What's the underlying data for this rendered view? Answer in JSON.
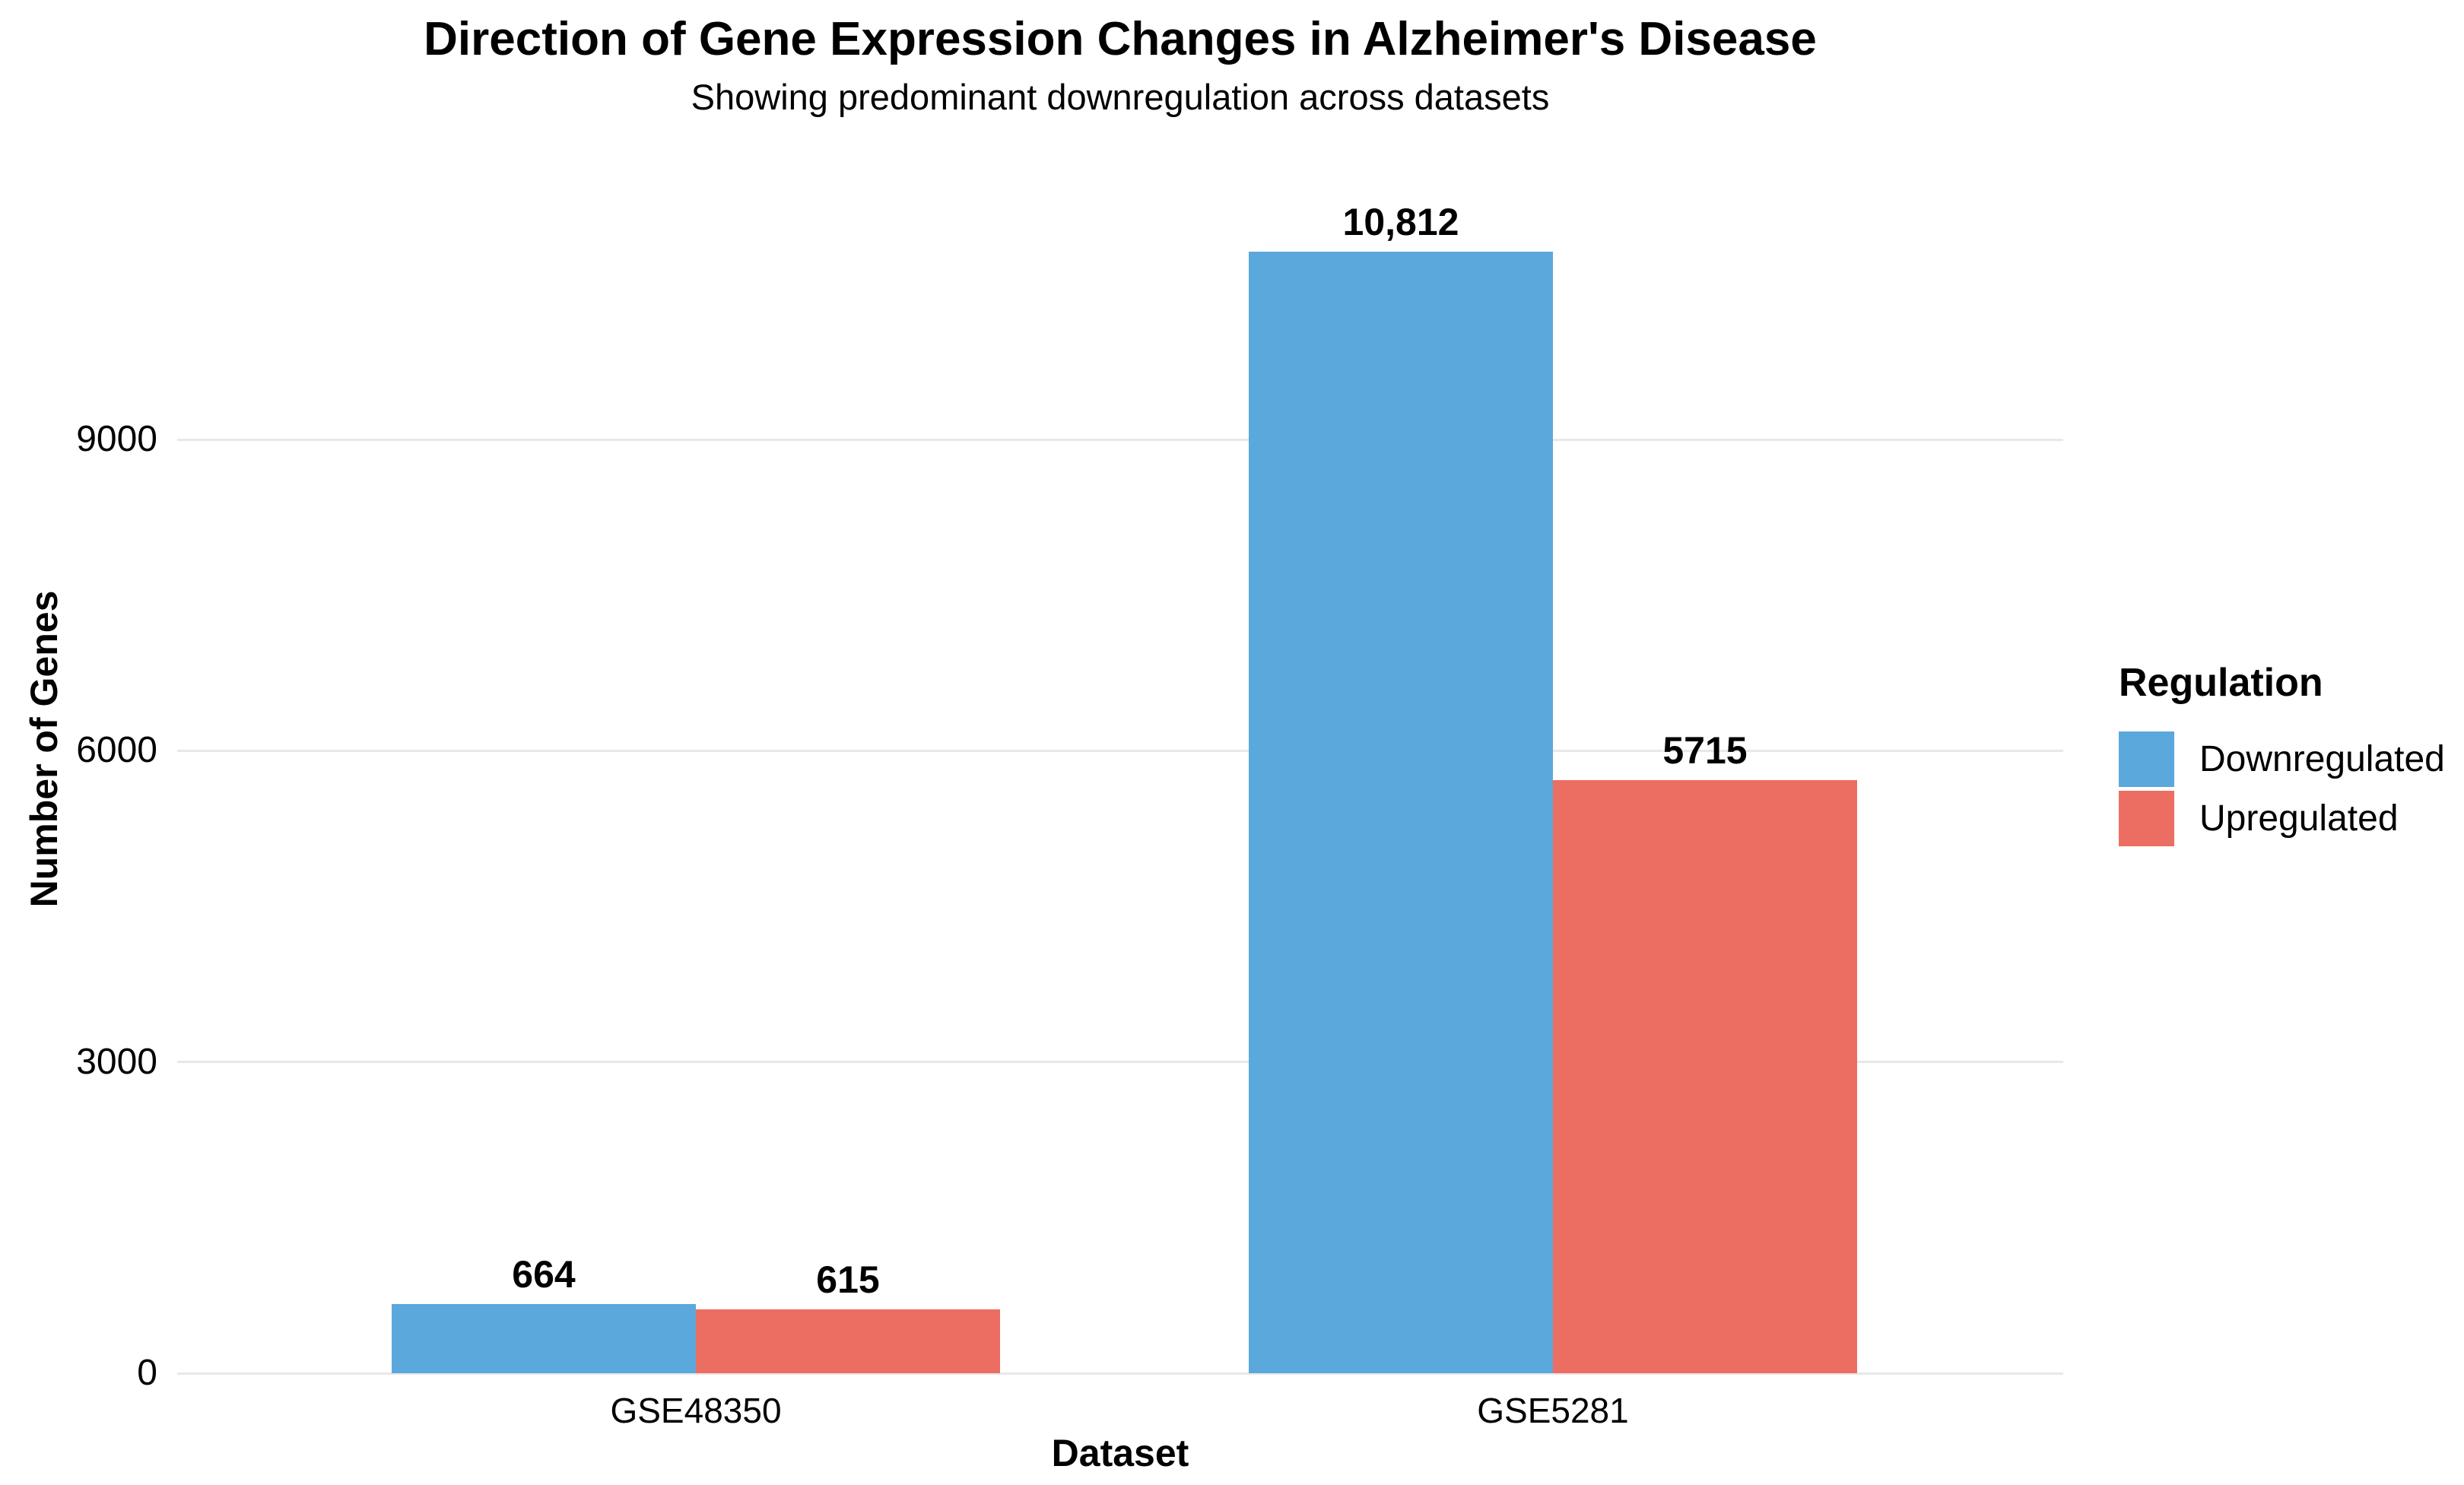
{
  "title": "Direction of Gene Expression Changes in Alzheimer's Disease",
  "subtitle": "Showing predominant downregulation across datasets",
  "chart_data": {
    "type": "bar",
    "categories": [
      "GSE48350",
      "GSE5281"
    ],
    "series": [
      {
        "name": "Downregulated",
        "color": "#5BA8DC",
        "values": [
          664,
          10812
        ],
        "display_values": [
          "664",
          "10,812"
        ]
      },
      {
        "name": "Upregulated",
        "color": "#EC6E62",
        "values": [
          615,
          5715
        ],
        "display_values": [
          "615",
          "5715"
        ]
      }
    ],
    "xlabel": "Dataset",
    "ylabel": "Number of Genes",
    "yticks": [
      {
        "value": 0,
        "label": "0"
      },
      {
        "value": 3000,
        "label": "3000"
      },
      {
        "value": 6000,
        "label": "6000"
      },
      {
        "value": 9000,
        "label": "9000"
      }
    ],
    "ylim": [
      0,
      11000
    ],
    "grid": "horizontal",
    "gridline_color": "#E8E8E8",
    "background_color": "#FFFFFF",
    "text_color": "#000000",
    "legend": {
      "title": "Regulation",
      "position": "right",
      "entries": [
        "Downregulated",
        "Upregulated"
      ]
    }
  }
}
